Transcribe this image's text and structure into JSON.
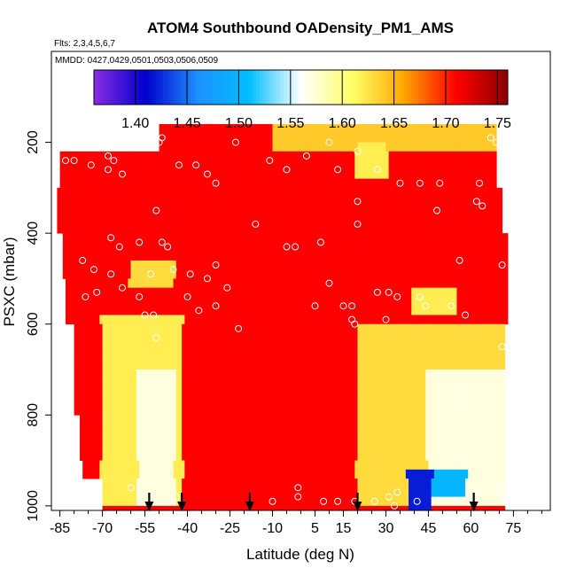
{
  "chart_data": {
    "type": "heatmap",
    "title": "ATOM4 Southbound OADensity_PM1_AMS",
    "subtitle_flights": "Flts: 2,3,4,5,6,7",
    "subtitle_dates": "MMDD: 0427,0429,0501,0503,0506,0509",
    "xlabel": "Latitude (deg N)",
    "ylabel": "PSXC (mbar)",
    "xlim": [
      -88,
      88
    ],
    "ylim": [
      1010,
      0
    ],
    "x_ticks": [
      -85,
      -70,
      -55,
      -40,
      -25,
      -10,
      5,
      15,
      30,
      45,
      60,
      75
    ],
    "x_tick_labels": [
      "-85",
      "-70",
      "-55",
      "-40",
      "-25",
      "-10",
      "5",
      "15",
      "30",
      "45",
      "60",
      "75"
    ],
    "y_ticks": [
      200,
      400,
      600,
      800,
      1000
    ],
    "y_tick_labels": [
      "200",
      "400",
      "600",
      "800",
      "1000"
    ],
    "colorbar": {
      "range": [
        1.36,
        1.76
      ],
      "ticks": [
        1.4,
        1.45,
        1.5,
        1.55,
        1.6,
        1.65,
        1.7,
        1.75
      ],
      "tick_labels": [
        "1.40",
        "1.45",
        "1.50",
        "1.55",
        "1.60",
        "1.65",
        "1.70",
        "1.75"
      ],
      "colors": [
        "#8a2be2",
        "#0000cd",
        "#1e90ff",
        "#00bfff",
        "#ffffff",
        "#ffff66",
        "#ffa500",
        "#ff0000",
        "#8b0000"
      ]
    },
    "background_value": 1.71,
    "features": [
      {
        "lat": [
          -70,
          -42
        ],
        "p": [
          580,
          990
        ],
        "value": 1.62
      },
      {
        "lat": [
          -57,
          -45
        ],
        "p": [
          700,
          990
        ],
        "value": 1.57
      },
      {
        "lat": [
          -60,
          -45
        ],
        "p": [
          470,
          520
        ],
        "value": 1.63
      },
      {
        "lat": [
          -10,
          70
        ],
        "p": [
          160,
          210
        ],
        "value": 1.64
      },
      {
        "lat": [
          20,
          30
        ],
        "p": [
          210,
          270
        ],
        "value": 1.62
      },
      {
        "lat": [
          20,
          72
        ],
        "p": [
          600,
          990
        ],
        "value": 1.63
      },
      {
        "lat": [
          45,
          72
        ],
        "p": [
          700,
          990
        ],
        "value": 1.57
      },
      {
        "lat": [
          40,
          55
        ],
        "p": [
          530,
          580
        ],
        "value": 1.62
      },
      {
        "lat": [
          38,
          46
        ],
        "p": [
          920,
          1010
        ],
        "value": 1.42
      },
      {
        "lat": [
          46,
          58
        ],
        "p": [
          920,
          980
        ],
        "value": 1.5
      }
    ],
    "sample_points": [
      {
        "x": -83,
        "y": 240
      },
      {
        "x": -80,
        "y": 240
      },
      {
        "x": -74,
        "y": 250
      },
      {
        "x": -68,
        "y": 230
      },
      {
        "x": -68,
        "y": 260
      },
      {
        "x": -66,
        "y": 240
      },
      {
        "x": -63,
        "y": 270
      },
      {
        "x": -62,
        "y": 200
      },
      {
        "x": -56,
        "y": 190
      },
      {
        "x": -50,
        "y": 200
      },
      {
        "x": -49,
        "y": 190
      },
      {
        "x": -43,
        "y": 250
      },
      {
        "x": -37,
        "y": 250
      },
      {
        "x": -33,
        "y": 270
      },
      {
        "x": -30,
        "y": 290
      },
      {
        "x": -23,
        "y": 200
      },
      {
        "x": -11,
        "y": 240
      },
      {
        "x": -5,
        "y": 260
      },
      {
        "x": 2,
        "y": 230
      },
      {
        "x": 13,
        "y": 260
      },
      {
        "x": 10,
        "y": 200
      },
      {
        "x": 20,
        "y": 220
      },
      {
        "x": 27,
        "y": 260
      },
      {
        "x": 35,
        "y": 290
      },
      {
        "x": 42,
        "y": 290
      },
      {
        "x": 49,
        "y": 290
      },
      {
        "x": 63,
        "y": 290
      },
      {
        "x": 67,
        "y": 190
      },
      {
        "x": 69,
        "y": 200
      },
      {
        "x": 62,
        "y": 330
      },
      {
        "x": 64,
        "y": 340
      },
      {
        "x": 48,
        "y": 350
      },
      {
        "x": 20,
        "y": 330
      },
      {
        "x": 20,
        "y": 380
      },
      {
        "x": -16,
        "y": 380
      },
      {
        "x": -51,
        "y": 350
      },
      {
        "x": -77,
        "y": 460
      },
      {
        "x": -73,
        "y": 480
      },
      {
        "x": -67,
        "y": 410
      },
      {
        "x": -64,
        "y": 430
      },
      {
        "x": -57,
        "y": 420
      },
      {
        "x": -49,
        "y": 420
      },
      {
        "x": -47,
        "y": 430
      },
      {
        "x": -67,
        "y": 490
      },
      {
        "x": -63,
        "y": 520
      },
      {
        "x": -57,
        "y": 540
      },
      {
        "x": -53,
        "y": 490
      },
      {
        "x": -45,
        "y": 480
      },
      {
        "x": -39,
        "y": 490
      },
      {
        "x": -33,
        "y": 500
      },
      {
        "x": -30,
        "y": 470
      },
      {
        "x": -26,
        "y": 520
      },
      {
        "x": -5,
        "y": 430
      },
      {
        "x": -2,
        "y": 430
      },
      {
        "x": 7,
        "y": 420
      },
      {
        "x": 10,
        "y": 510
      },
      {
        "x": 5,
        "y": 560
      },
      {
        "x": 15,
        "y": 560
      },
      {
        "x": 18,
        "y": 560
      },
      {
        "x": 27,
        "y": 530
      },
      {
        "x": 31,
        "y": 530
      },
      {
        "x": 34,
        "y": 540
      },
      {
        "x": 42,
        "y": 540
      },
      {
        "x": 44,
        "y": 560
      },
      {
        "x": 53,
        "y": 560
      },
      {
        "x": 58,
        "y": 580
      },
      {
        "x": 56,
        "y": 460
      },
      {
        "x": 71,
        "y": 470
      },
      {
        "x": 71,
        "y": 650
      },
      {
        "x": 72,
        "y": 710
      },
      {
        "x": 56,
        "y": 760
      },
      {
        "x": 56,
        "y": 900
      },
      {
        "x": -76,
        "y": 540
      },
      {
        "x": -72,
        "y": 530
      },
      {
        "x": -55,
        "y": 580
      },
      {
        "x": -51,
        "y": 630
      },
      {
        "x": -52,
        "y": 580
      },
      {
        "x": -40,
        "y": 540
      },
      {
        "x": -36,
        "y": 570
      },
      {
        "x": -30,
        "y": 560
      },
      {
        "x": -22,
        "y": 610
      },
      {
        "x": 18,
        "y": 590
      },
      {
        "x": 19,
        "y": 600
      },
      {
        "x": 30,
        "y": 590
      },
      {
        "x": -1,
        "y": 960
      },
      {
        "x": -1,
        "y": 980
      },
      {
        "x": -10,
        "y": 990
      },
      {
        "x": 8,
        "y": 990
      },
      {
        "x": 13,
        "y": 990
      },
      {
        "x": 19,
        "y": 990
      },
      {
        "x": 26,
        "y": 990
      },
      {
        "x": 34,
        "y": 970
      },
      {
        "x": 31,
        "y": 980
      },
      {
        "x": 33,
        "y": 1000
      },
      {
        "x": 41,
        "y": 990
      },
      {
        "x": 70,
        "y": 960
      },
      {
        "x": 71,
        "y": 975
      },
      {
        "x": 72,
        "y": 990
      },
      {
        "x": -60,
        "y": 960
      },
      {
        "x": -44,
        "y": 980
      }
    ],
    "markers_lat": [
      -53.5,
      -42,
      -18,
      20,
      61
    ]
  }
}
